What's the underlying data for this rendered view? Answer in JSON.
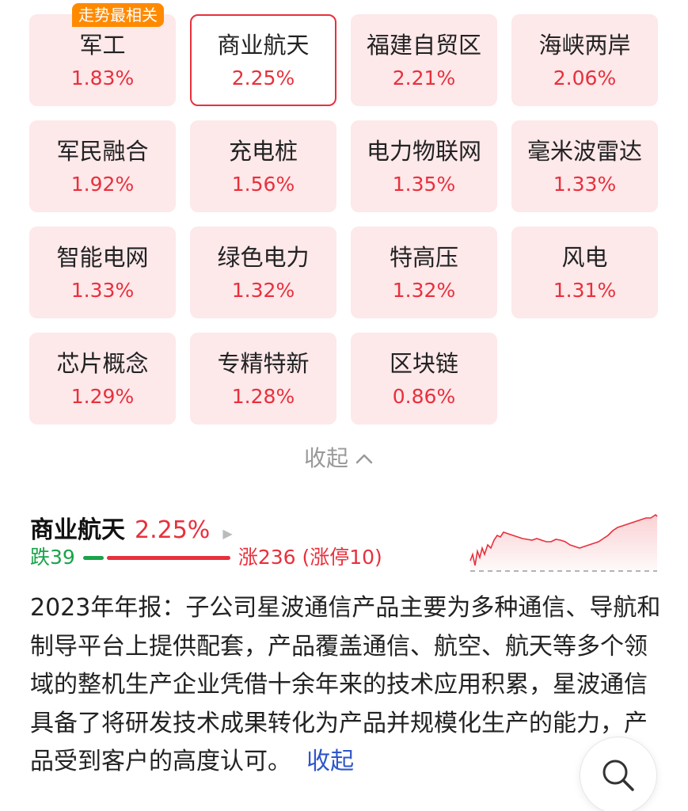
{
  "concepts": [
    {
      "name": "军工",
      "pct": "1.83%",
      "badge": "走势最相关"
    },
    {
      "name": "商业航天",
      "pct": "2.25%",
      "selected": true
    },
    {
      "name": "福建自贸区",
      "pct": "2.21%"
    },
    {
      "name": "海峡两岸",
      "pct": "2.06%"
    },
    {
      "name": "军民融合",
      "pct": "1.92%"
    },
    {
      "name": "充电桩",
      "pct": "1.56%"
    },
    {
      "name": "电力物联网",
      "pct": "1.35%"
    },
    {
      "name": "毫米波雷达",
      "pct": "1.33%"
    },
    {
      "name": "智能电网",
      "pct": "1.33%"
    },
    {
      "name": "绿色电力",
      "pct": "1.32%"
    },
    {
      "name": "特高压",
      "pct": "1.32%"
    },
    {
      "name": "风电",
      "pct": "1.31%"
    },
    {
      "name": "芯片概念",
      "pct": "1.29%"
    },
    {
      "name": "专精特新",
      "pct": "1.28%"
    },
    {
      "name": "区块链",
      "pct": "0.86%"
    }
  ],
  "collapse_label": "收起",
  "detail": {
    "title": "商业航天",
    "pct": "2.25%",
    "fall_label": "跌39",
    "rise_label": "涨236 (涨停10)",
    "description": "2023年年报：子公司星波通信产品主要为多种通信、导航和制导平台上提供配套，产品覆盖通信、航空、航天等多个领域的整机生产企业凭借十余年来的技术应用积累，星波通信具备了将研发技术成果转化为产品并规模化生产的能力，产品受到客户的高度认可。",
    "more_label": "收起"
  },
  "colors": {
    "rise": "#e8303c",
    "fall": "#1aa34a",
    "tile_bg": "#fde8ea",
    "badge": "#ff8a00",
    "link": "#2f56c9"
  },
  "icons": {
    "fab": "search-icon",
    "collapse": "chevron-up-icon",
    "detail": "triangle-right-icon"
  }
}
